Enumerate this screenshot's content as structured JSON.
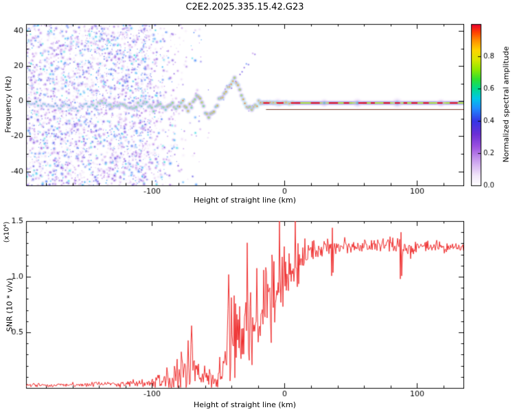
{
  "title": "C2E2.2025.335.15.42.G23",
  "chart_data": [
    {
      "type": "heatmap",
      "name": "spectrogram",
      "title": "C2E2.2025.335.15.42.G23",
      "xlabel": "Height of straight line (km)",
      "ylabel": "Frequency (Hz)",
      "xlim": [
        -195,
        135
      ],
      "ylim": [
        -48,
        44
      ],
      "xtick_values": [
        -100,
        0,
        100
      ],
      "xtick_labels": [
        "-100",
        "0",
        "100"
      ],
      "xminor_step": 20,
      "ytick_values": [
        -40,
        -20,
        0,
        20,
        40
      ],
      "ytick_labels": [
        "-40",
        "-20",
        "0",
        "20",
        "40"
      ],
      "yminor_step": 10,
      "colorbar": {
        "label": "Normalized spectral amplitude",
        "lim": [
          0,
          1
        ],
        "tick_values": [
          0,
          0.2,
          0.4,
          0.6,
          0.8
        ],
        "tick_labels": [
          "0.0",
          "0.2",
          "0.4",
          "0.6",
          "0.8"
        ]
      },
      "colormap": [
        [
          0.0,
          "#ffffff"
        ],
        [
          0.06,
          "#f3e8fa"
        ],
        [
          0.15,
          "#cda4ef"
        ],
        [
          0.24,
          "#9d52e0"
        ],
        [
          0.32,
          "#6b2fd6"
        ],
        [
          0.4,
          "#3534e6"
        ],
        [
          0.48,
          "#1f8cff"
        ],
        [
          0.54,
          "#00c6e8"
        ],
        [
          0.6,
          "#00d98e"
        ],
        [
          0.66,
          "#2fe02f"
        ],
        [
          0.72,
          "#8fe800"
        ],
        [
          0.78,
          "#d8e600"
        ],
        [
          0.84,
          "#ffd400"
        ],
        [
          0.9,
          "#ff8f00"
        ],
        [
          0.95,
          "#ff4200"
        ],
        [
          1.0,
          "#e8002f"
        ]
      ],
      "noise": {
        "count": 3200,
        "solid_fraction": 0.82,
        "solid_to": -108,
        "fade_to": -50,
        "max_amp": 0.5
      },
      "trace": {
        "step": 1.3,
        "band_from": -18,
        "center": [
          [
            -195,
            -2
          ],
          [
            -185,
            -1
          ],
          [
            -175,
            -3
          ],
          [
            -165,
            -2
          ],
          [
            -158,
            -4
          ],
          [
            -150,
            -2
          ],
          [
            -143,
            -3
          ],
          [
            -136,
            -1
          ],
          [
            -129,
            -3
          ],
          [
            -122,
            -2
          ],
          [
            -116,
            -4
          ],
          [
            -110,
            -2
          ],
          [
            -104,
            -1
          ],
          [
            -99,
            -4
          ],
          [
            -94,
            -2
          ],
          [
            -89,
            -5
          ],
          [
            -85,
            -1
          ],
          [
            -81,
            -4
          ],
          [
            -77,
            0
          ],
          [
            -73,
            -5
          ],
          [
            -69,
            -1
          ],
          [
            -65,
            3
          ],
          [
            -61,
            -4
          ],
          [
            -57,
            -9
          ],
          [
            -53,
            -5
          ],
          [
            -49,
            1
          ],
          [
            -45,
            5
          ],
          [
            -41,
            9
          ],
          [
            -37,
            12
          ],
          [
            -34,
            6
          ],
          [
            -31,
            1
          ],
          [
            -28,
            -3
          ],
          [
            -25,
            -5
          ],
          [
            -22,
            -2
          ],
          [
            -19,
            0
          ],
          [
            -18,
            -1
          ]
        ],
        "amplitude": [
          [
            -195,
            0.42
          ],
          [
            -150,
            0.48
          ],
          [
            -120,
            0.55
          ],
          [
            -100,
            0.6
          ],
          [
            -80,
            0.65
          ],
          [
            -60,
            0.7
          ],
          [
            -40,
            0.75
          ],
          [
            -25,
            0.8
          ],
          [
            -18,
            0.85
          ]
        ]
      },
      "branch": {
        "from": [
          -48,
          2
        ],
        "to": [
          -21,
          28
        ],
        "amp": 0.3
      },
      "band": {
        "center": -1,
        "from": -18,
        "bead_until": 8,
        "layers": [
          [
            5.5,
            0.13,
            0.85
          ],
          [
            3.2,
            0.38,
            0.9
          ],
          [
            2.0,
            0.62,
            1
          ],
          [
            1.1,
            0.8,
            1
          ]
        ],
        "bulges": [
          [
            -5,
            5
          ],
          [
            30,
            4
          ],
          [
            55,
            5
          ],
          [
            85,
            6
          ],
          [
            118,
            4
          ]
        ],
        "subline": {
          "y": -4.5,
          "from": -14,
          "color": "#5a1400"
        }
      }
    },
    {
      "type": "line",
      "name": "snr",
      "xlabel": "Height of straight line (km)",
      "ylabel": "SNR (10 * v/v)",
      "scale_label": "(x10⁴)",
      "xlim": [
        -195,
        135
      ],
      "ylim": [
        0,
        1.5
      ],
      "xtick_values": [
        -100,
        0,
        100
      ],
      "xtick_labels": [
        "-100",
        "0",
        "100"
      ],
      "xminor_step": 20,
      "ytick_values": [
        0.5,
        1.0,
        1.5
      ],
      "ytick_labels": [
        "0.5",
        "1.0",
        "1.5"
      ],
      "yminor_step": 0.1,
      "line_color": "#ee2c2c",
      "envelope": [
        [
          -195,
          0.025,
          0.008
        ],
        [
          -160,
          0.028,
          0.009
        ],
        [
          -130,
          0.032,
          0.012
        ],
        [
          -112,
          0.038,
          0.016
        ],
        [
          -100,
          0.05,
          0.025
        ],
        [
          -92,
          0.07,
          0.04
        ],
        [
          -85,
          0.1,
          0.06
        ],
        [
          -78,
          0.14,
          0.09
        ],
        [
          -73,
          0.17,
          0.11
        ],
        [
          -68,
          0.15,
          0.09
        ],
        [
          -63,
          0.12,
          0.06
        ],
        [
          -58,
          0.1,
          0.05
        ],
        [
          -52,
          0.09,
          0.05
        ],
        [
          -47,
          0.12,
          0.08
        ],
        [
          -44,
          0.28,
          0.18
        ],
        [
          -41,
          0.5,
          0.3
        ],
        [
          -38,
          0.52,
          0.22
        ],
        [
          -34,
          0.48,
          0.18
        ],
        [
          -30,
          0.55,
          0.2
        ],
        [
          -26,
          0.62,
          0.22
        ],
        [
          -22,
          0.55,
          0.2
        ],
        [
          -18,
          0.68,
          0.22
        ],
        [
          -14,
          0.78,
          0.2
        ],
        [
          -10,
          0.88,
          0.17
        ],
        [
          -6,
          0.92,
          0.15
        ],
        [
          -2,
          0.97,
          0.14
        ],
        [
          2,
          1.02,
          0.12
        ],
        [
          6,
          1.06,
          0.1
        ],
        [
          10,
          1.1,
          0.09
        ],
        [
          14,
          1.16,
          0.07
        ],
        [
          18,
          1.22,
          0.055
        ],
        [
          24,
          1.26,
          0.045
        ],
        [
          30,
          1.25,
          0.04
        ],
        [
          40,
          1.27,
          0.03
        ],
        [
          55,
          1.26,
          0.03
        ],
        [
          70,
          1.28,
          0.03
        ],
        [
          82,
          1.3,
          0.035
        ],
        [
          90,
          1.24,
          0.045
        ],
        [
          100,
          1.27,
          0.03
        ],
        [
          112,
          1.29,
          0.03
        ],
        [
          122,
          1.25,
          0.03
        ],
        [
          130,
          1.27,
          0.025
        ],
        [
          135,
          1.26,
          0.025
        ]
      ],
      "spikes": [
        [
          -70,
          0.56
        ],
        [
          -42,
          1.02
        ],
        [
          8,
          1.5
        ],
        [
          10,
          1.3
        ],
        [
          36,
          1.44
        ],
        [
          88,
          1.4
        ]
      ]
    }
  ]
}
